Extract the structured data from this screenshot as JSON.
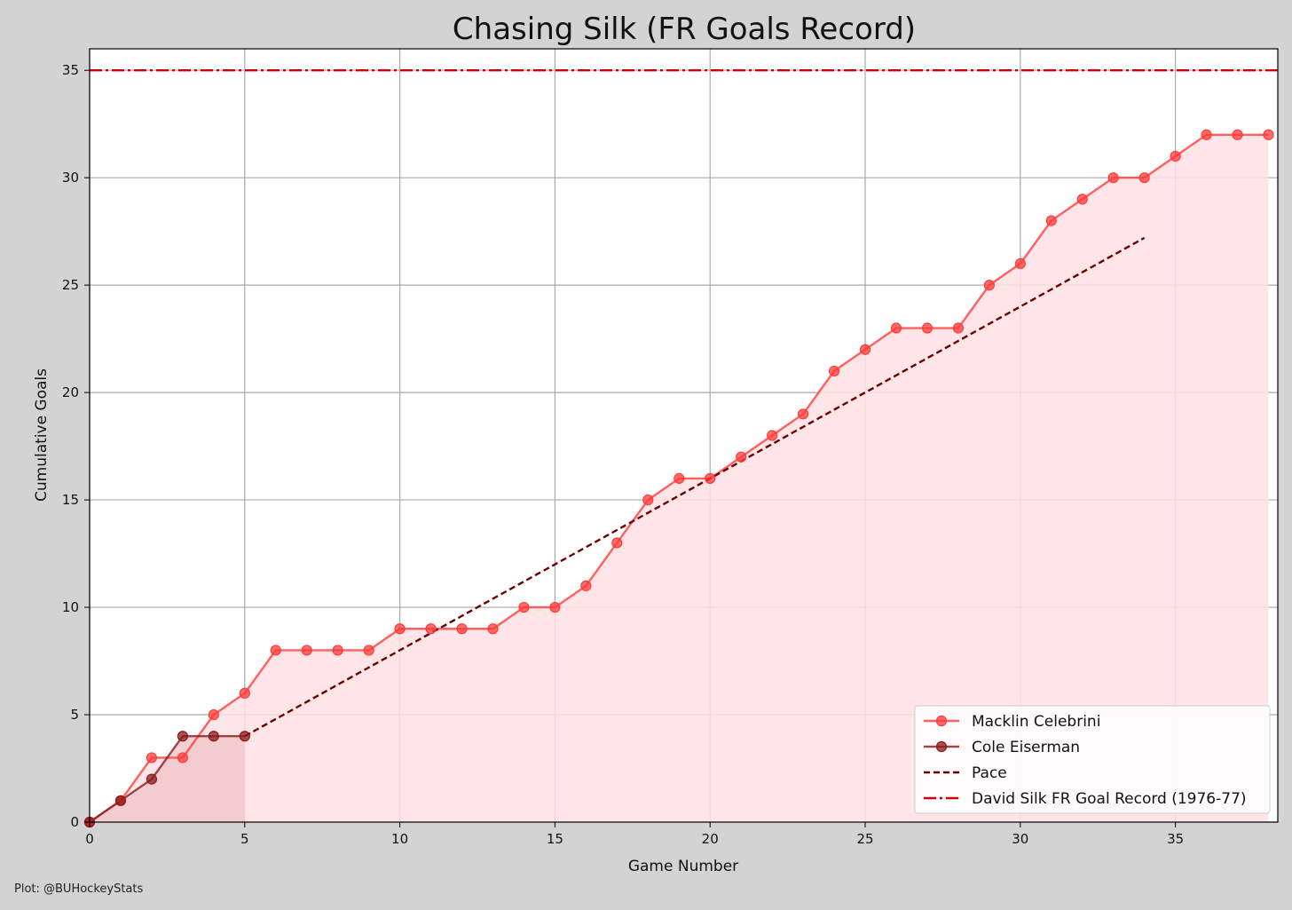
{
  "chart_data": {
    "type": "line",
    "title": "Chasing Silk (FR Goals Record)",
    "xlabel": "Game Number",
    "ylabel": "Cumulative Goals",
    "xlim": [
      0,
      38.3
    ],
    "ylim": [
      0,
      36
    ],
    "xticks": [
      0,
      5,
      10,
      15,
      20,
      25,
      30,
      35
    ],
    "yticks": [
      0,
      5,
      10,
      15,
      20,
      25,
      30,
      35
    ],
    "grid": true,
    "legend_position": "lower-right",
    "credit": "Plot: @BUHockeyStats",
    "series": [
      {
        "name": "Macklin Celebrini",
        "style": "line-marker-fill",
        "color": "#ff3b3b",
        "fill": "#ffe1e3",
        "x": [
          0,
          1,
          2,
          3,
          4,
          5,
          6,
          7,
          8,
          9,
          10,
          11,
          12,
          13,
          14,
          15,
          16,
          17,
          18,
          19,
          20,
          21,
          22,
          23,
          24,
          25,
          26,
          27,
          28,
          29,
          30,
          31,
          32,
          33,
          34,
          35,
          36,
          37,
          38
        ],
        "y": [
          0,
          1,
          3,
          3,
          5,
          6,
          8,
          8,
          8,
          8,
          9,
          9,
          9,
          9,
          10,
          10,
          11,
          13,
          15,
          16,
          16,
          17,
          18,
          19,
          21,
          22,
          23,
          23,
          23,
          25,
          26,
          28,
          29,
          30,
          30,
          31,
          32,
          32,
          32
        ]
      },
      {
        "name": "Cole Eiserman",
        "style": "line-marker-fill",
        "color": "#8b1a1a",
        "fill": "#f0c8ca",
        "x": [
          0,
          1,
          2,
          3,
          4,
          5
        ],
        "y": [
          0,
          1,
          2,
          4,
          4,
          4
        ]
      },
      {
        "name": "Pace",
        "style": "dashed",
        "color": "#6b0000",
        "x": [
          5,
          34
        ],
        "y": [
          4,
          27.2
        ]
      },
      {
        "name": "David Silk FR Goal Record (1976-77)",
        "style": "dashdot",
        "color": "#cc0000",
        "y_const": 35
      }
    ]
  }
}
